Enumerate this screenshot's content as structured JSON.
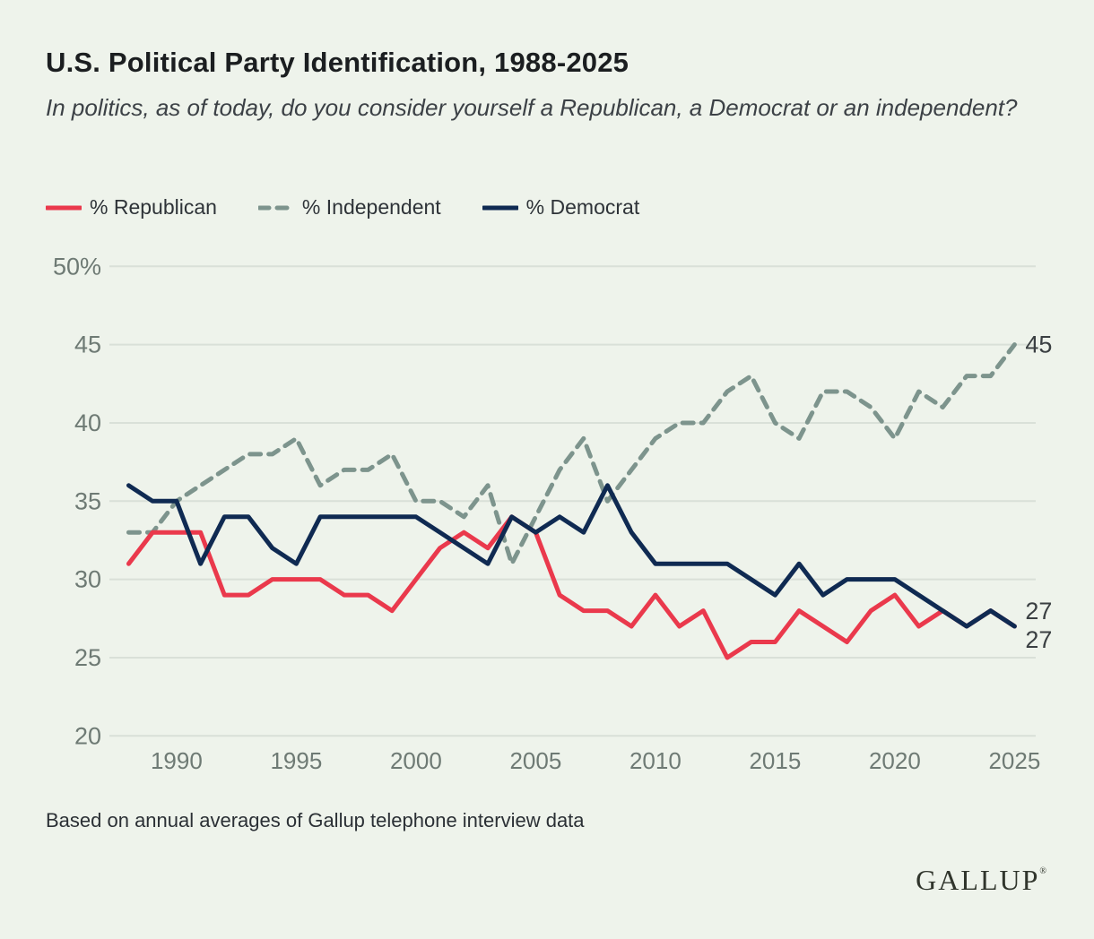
{
  "page": {
    "background": "#eef3eb"
  },
  "header": {
    "title": "U.S. Political Party Identification, 1988-2025",
    "subtitle": "In politics, as of today, do you consider yourself a Republican, a Democrat or an independent?"
  },
  "legend": [
    {
      "label": "% Republican",
      "color": "#ea394c",
      "style": "solid"
    },
    {
      "label": "% Independent",
      "color": "#7d948d",
      "style": "dashed"
    },
    {
      "label": "% Democrat",
      "color": "#0f2a52",
      "style": "solid"
    }
  ],
  "chart_data": {
    "type": "line",
    "title": "U.S. Political Party Identification, 1988-2025",
    "xlabel": "",
    "ylabel": "",
    "grid": true,
    "legend_position": "top",
    "ylim": [
      20,
      50
    ],
    "x": [
      1988,
      1989,
      1990,
      1991,
      1992,
      1993,
      1994,
      1995,
      1996,
      1997,
      1998,
      1999,
      2000,
      2001,
      2002,
      2003,
      2004,
      2005,
      2006,
      2007,
      2008,
      2009,
      2010,
      2011,
      2012,
      2013,
      2014,
      2015,
      2016,
      2017,
      2018,
      2019,
      2020,
      2021,
      2022,
      2023,
      2024,
      2025
    ],
    "series": [
      {
        "name": "% Republican",
        "color": "#ea394c",
        "dash": false,
        "values": [
          31,
          33,
          33,
          33,
          29,
          29,
          30,
          30,
          30,
          29,
          29,
          28,
          30,
          32,
          33,
          32,
          34,
          33,
          29,
          28,
          28,
          27,
          29,
          27,
          28,
          25,
          26,
          26,
          28,
          27,
          26,
          28,
          29,
          27,
          28,
          27,
          28,
          27
        ]
      },
      {
        "name": "% Independent",
        "color": "#7d948d",
        "dash": true,
        "values": [
          33,
          33,
          35,
          36,
          37,
          38,
          38,
          39,
          36,
          37,
          37,
          38,
          35,
          35,
          34,
          36,
          31,
          34,
          37,
          39,
          35,
          37,
          39,
          40,
          40,
          42,
          43,
          40,
          39,
          42,
          42,
          41,
          39,
          42,
          41,
          43,
          43,
          45
        ]
      },
      {
        "name": "% Democrat",
        "color": "#0f2a52",
        "dash": false,
        "values": [
          36,
          35,
          35,
          31,
          34,
          34,
          32,
          31,
          34,
          34,
          34,
          34,
          34,
          33,
          32,
          31,
          34,
          33,
          34,
          33,
          36,
          33,
          31,
          31,
          31,
          31,
          30,
          29,
          31,
          29,
          30,
          30,
          30,
          29,
          28,
          27,
          28,
          27
        ]
      }
    ],
    "y_ticks": [
      {
        "value": 50,
        "label": "50%"
      },
      {
        "value": 45,
        "label": "45"
      },
      {
        "value": 40,
        "label": "40"
      },
      {
        "value": 35,
        "label": "35"
      },
      {
        "value": 30,
        "label": "30"
      },
      {
        "value": 25,
        "label": "25"
      },
      {
        "value": 20,
        "label": "20"
      }
    ],
    "x_ticks": [
      "1990",
      "1995",
      "2000",
      "2005",
      "2010",
      "2015",
      "2020",
      "2025"
    ],
    "end_labels": [
      {
        "text": "45",
        "series": "% Independent",
        "value": 45
      },
      {
        "text": "27",
        "series": "% Democrat",
        "value": 27
      },
      {
        "text": "27",
        "series": "% Republican",
        "value": 27
      }
    ]
  },
  "footer": {
    "note": "Based on annual averages of Gallup telephone interview data",
    "logo": "GALLUP",
    "logo_mark": "®"
  }
}
